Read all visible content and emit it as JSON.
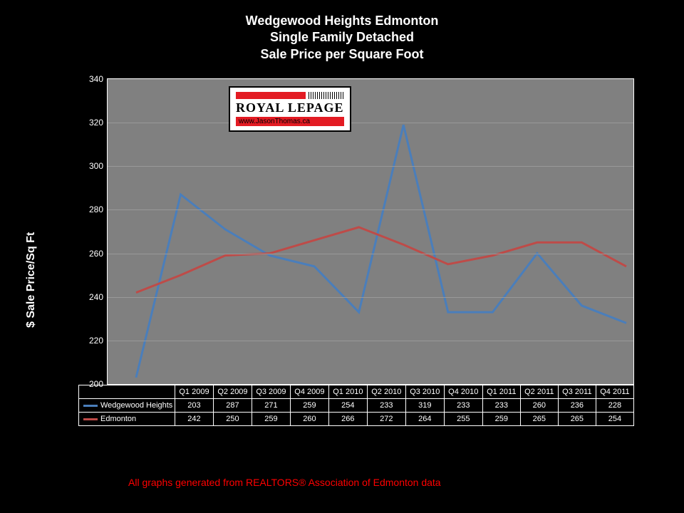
{
  "title_line1": "Wedgewood Heights Edmonton",
  "title_line2": "Single Family Detached",
  "title_line3": "Sale Price per Square Foot",
  "yaxis_label": "$ Sale Price/Sq Ft",
  "footnote": "All graphs generated from REALTORS® Association of Edmonton data",
  "logo": {
    "brand": "ROYAL LEPAGE",
    "url": "www.JasonThomas.ca"
  },
  "chart": {
    "type": "line",
    "background_color": "#808080",
    "page_background": "#000000",
    "text_color": "#ffffff",
    "grid_color": "#999999",
    "ylim": [
      200,
      340
    ],
    "ytick_step": 20,
    "yticks": [
      200,
      220,
      240,
      260,
      280,
      300,
      320,
      340
    ],
    "categories": [
      "Q1 2009",
      "Q2 2009",
      "Q3 2009",
      "Q4 2009",
      "Q1 2010",
      "Q2 2010",
      "Q3 2010",
      "Q4 2010",
      "Q1 2011",
      "Q2 2011",
      "Q3 2011",
      "Q4 2011"
    ],
    "line_width": 3,
    "series": [
      {
        "name": "Wedgewood Heights",
        "color": "#4a7ebb",
        "values": [
          203,
          287,
          271,
          259,
          254,
          233,
          319,
          233,
          233,
          260,
          236,
          228
        ]
      },
      {
        "name": "Edmonton",
        "color": "#be4b48",
        "values": [
          242,
          250,
          259,
          260,
          266,
          272,
          264,
          255,
          259,
          265,
          265,
          254
        ]
      }
    ]
  }
}
